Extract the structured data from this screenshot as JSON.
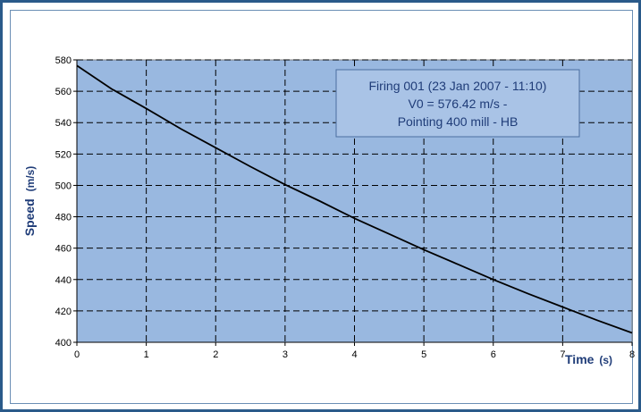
{
  "chart_data": {
    "type": "line",
    "xlabel": "Time",
    "xlabel_unit": "(s)",
    "ylabel": "Speed",
    "ylabel_unit": "(m/s)",
    "xlim": [
      0,
      8
    ],
    "ylim": [
      400,
      580
    ],
    "xticks": [
      0,
      1,
      2,
      3,
      4,
      5,
      6,
      7,
      8
    ],
    "yticks": [
      400,
      420,
      440,
      460,
      480,
      500,
      520,
      540,
      560,
      580
    ],
    "grid": true,
    "annotation": [
      "Firing 001 (23 Jan 2007 - 11:10)",
      "V0 = 576.42 m/s -",
      "Pointing 400 mill - HB"
    ],
    "series": [
      {
        "x": [
          0,
          0.5,
          1,
          1.5,
          2,
          2.5,
          3,
          3.5,
          4,
          4.5,
          5,
          5.5,
          6,
          6.5,
          7,
          7.5,
          8
        ],
        "y": [
          576.4,
          561.5,
          549,
          536,
          524,
          512,
          500.5,
          490,
          479,
          469,
          459,
          449.5,
          440,
          431,
          422.5,
          414,
          406
        ]
      }
    ],
    "colors": {
      "plot_bg": "#99b8e0",
      "line": "#000000",
      "grid": "#000000",
      "text_accent": "#1f3c78",
      "frame": "#2a5a8a",
      "annotation_bg": "#a9c3e6"
    }
  }
}
